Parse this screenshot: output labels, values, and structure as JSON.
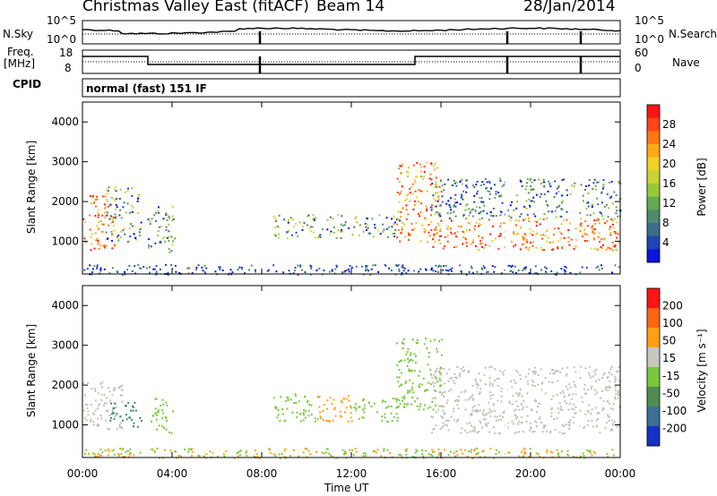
{
  "header": {
    "station": "Christmas Valley East (fitACF)",
    "beam": "Beam 14",
    "date": "28/Jan/2014"
  },
  "noise_panel": {
    "left_label": "N.Sky",
    "right_label": "N.Search",
    "left_ticks": [
      "10^5",
      "10^0"
    ],
    "right_ticks": [
      "10^5",
      "10^0"
    ]
  },
  "freq_panel": {
    "left_label_1": "Freq.",
    "left_label_2": "[MHz]",
    "right_label": "Nave",
    "left_ticks": [
      "18",
      "8"
    ],
    "right_ticks": [
      "60",
      "0"
    ]
  },
  "cpid": {
    "label": "CPID",
    "program": "normal (fast) 151 IF"
  },
  "chart_data": [
    {
      "type": "heatmap",
      "title": "Power",
      "xlabel": "Time UT",
      "ylabel": "Slant Range [km]",
      "x_ticks": [
        "00:00",
        "04:00",
        "08:00",
        "12:00",
        "16:00",
        "20:00",
        "00:00"
      ],
      "y_ticks": [
        "1000",
        "2000",
        "3000",
        "4000"
      ],
      "xlim": [
        0,
        24
      ],
      "ylim": [
        180,
        4500
      ],
      "colorbar": {
        "label": "Power [dB]",
        "ticks": [
          "4",
          "8",
          "12",
          "16",
          "20",
          "24",
          "28"
        ],
        "colors": [
          "#0a14dc",
          "#1e46b4",
          "#3c6e8c",
          "#508a6e",
          "#64aa50",
          "#96c83c",
          "#c8d232",
          "#f0d228",
          "#ffaa14",
          "#ff7814",
          "#ff4614",
          "#ff1414"
        ]
      },
      "echo_regions": [
        {
          "t0": 0.0,
          "t1": 1.5,
          "r0": 800,
          "r1": 2200,
          "level": "high"
        },
        {
          "t0": 1.0,
          "t1": 2.6,
          "r0": 1000,
          "r1": 2400,
          "level": "mid"
        },
        {
          "t0": 2.9,
          "t1": 4.1,
          "r0": 700,
          "r1": 1900,
          "level": "mid"
        },
        {
          "t0": 8.5,
          "t1": 14.2,
          "r0": 1100,
          "r1": 1700,
          "level": "mid"
        },
        {
          "t0": 14.0,
          "t1": 16.0,
          "r0": 1000,
          "r1": 3000,
          "level": "high"
        },
        {
          "t0": 15.5,
          "t1": 24.0,
          "r0": 800,
          "r1": 1600,
          "level": "high"
        },
        {
          "t0": 15.5,
          "t1": 24.0,
          "r0": 1600,
          "r1": 2600,
          "level": "low"
        }
      ]
    },
    {
      "type": "heatmap",
      "title": "Velocity",
      "xlabel": "Time UT",
      "ylabel": "Slant Range [km]",
      "x_ticks": [
        "00:00",
        "04:00",
        "08:00",
        "12:00",
        "16:00",
        "20:00",
        "00:00"
      ],
      "y_ticks": [
        "1000",
        "2000",
        "3000",
        "4000"
      ],
      "xlim": [
        0,
        24
      ],
      "ylim": [
        180,
        4500
      ],
      "colorbar": {
        "label": "Velocity [m s⁻¹]",
        "ticks": [
          "200",
          "100",
          "50",
          "15",
          "-15",
          "-50",
          "-100",
          "-200"
        ],
        "colors": [
          "#1432c8",
          "#3c6e96",
          "#508c50",
          "#78c83c",
          "#c8c8c0",
          "#ffa014",
          "#ff6414",
          "#ff1414"
        ]
      },
      "echo_regions": [
        {
          "t0": 0.0,
          "t1": 1.8,
          "r0": 900,
          "r1": 2100,
          "level": "gray"
        },
        {
          "t0": 1.2,
          "t1": 2.6,
          "r0": 950,
          "r1": 1600,
          "level": "green_dark"
        },
        {
          "t0": 3.0,
          "t1": 4.0,
          "r0": 800,
          "r1": 1700,
          "level": "green"
        },
        {
          "t0": 8.5,
          "t1": 10.5,
          "r0": 1100,
          "r1": 1800,
          "level": "green"
        },
        {
          "t0": 10.5,
          "t1": 12.0,
          "r0": 1100,
          "r1": 1800,
          "level": "orange"
        },
        {
          "t0": 12.0,
          "t1": 14.2,
          "r0": 1100,
          "r1": 1700,
          "level": "green"
        },
        {
          "t0": 14.0,
          "t1": 16.0,
          "r0": 1400,
          "r1": 3200,
          "level": "green"
        },
        {
          "t0": 15.5,
          "t1": 24.0,
          "r0": 800,
          "r1": 2500,
          "level": "gray"
        }
      ]
    }
  ]
}
